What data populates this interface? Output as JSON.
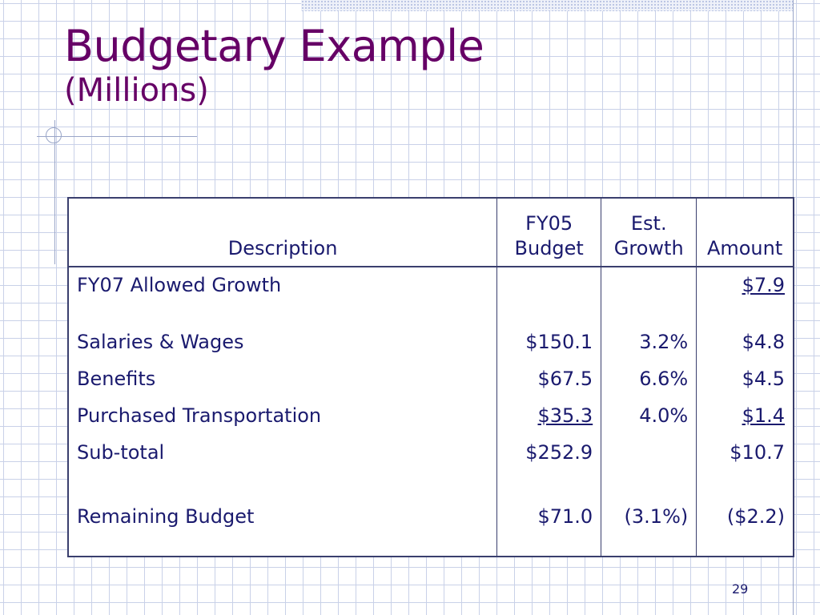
{
  "slide": {
    "title": "Budgetary Example",
    "subtitle": "(Millions)",
    "page_number": "29"
  },
  "table": {
    "headers": {
      "description": "Description",
      "budget_line1": "FY05",
      "budget_line2": "Budget",
      "growth_line1": "Est.",
      "growth_line2": "Growth",
      "amount": "Amount"
    },
    "rows": [
      {
        "description": "FY07 Allowed Growth",
        "budget": "",
        "growth": "",
        "amount": "$7.9"
      },
      {
        "description": "Salaries & Wages",
        "budget": "$150.1",
        "growth": "3.2%",
        "amount": "$4.8"
      },
      {
        "description": "Benefits",
        "budget": "$67.5",
        "growth": "6.6%",
        "amount": "$4.5"
      },
      {
        "description": "Purchased Transportation",
        "budget": "$35.3",
        "growth": "4.0%",
        "amount": "$1.4"
      },
      {
        "description": "Sub-total",
        "budget": "$252.9",
        "growth": "",
        "amount": "$10.7"
      },
      {
        "description": "Remaining Budget",
        "budget": "$71.0",
        "growth": "(3.1%)",
        "amount": "($2.2)"
      }
    ]
  },
  "colors": {
    "title": "#660066",
    "table_text": "#1a1a6e",
    "border": "#3a3f6e",
    "grid": "#c9d1e8"
  }
}
